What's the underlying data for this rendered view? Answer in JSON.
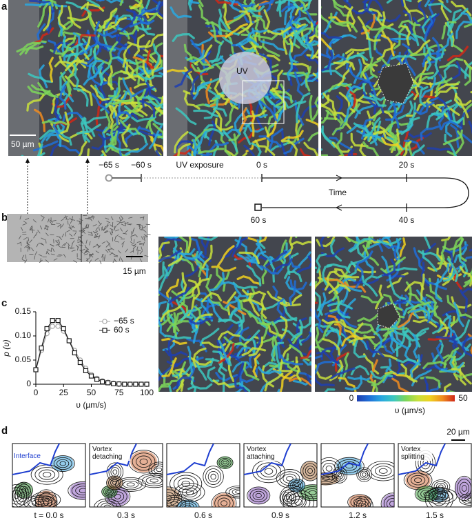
{
  "panel_a": {
    "label": "a",
    "scale_bar": "50 µm",
    "uv_label": "UV"
  },
  "timeline": {
    "labels": [
      "−65 s",
      "−60 s",
      "UV exposure",
      "0 s",
      "20 s",
      "40 s",
      "60 s"
    ],
    "axis_label": "Time"
  },
  "panel_b": {
    "label": "b",
    "scale_bar": "15 µm"
  },
  "chart_data": {
    "type": "line",
    "panel_label": "c",
    "xlabel": "υ (µm/s)",
    "ylabel": "p (υ)",
    "x": [
      0,
      5,
      10,
      15,
      20,
      25,
      30,
      35,
      40,
      45,
      50,
      55,
      60,
      65,
      70,
      75,
      80,
      85,
      90,
      95,
      100
    ],
    "series": [
      {
        "name": "−65 s",
        "color": "#a6a6a6",
        "marker": "circle",
        "values": [
          0.03,
          0.07,
          0.105,
          0.12,
          0.12,
          0.11,
          0.09,
          0.07,
          0.05,
          0.033,
          0.02,
          0.012,
          0.007,
          0.004,
          0.002,
          0.001,
          0,
          0,
          0,
          0,
          0
        ]
      },
      {
        "name": "60 s",
        "color": "#1a1a1a",
        "marker": "square",
        "values": [
          0.03,
          0.075,
          0.115,
          0.132,
          0.132,
          0.115,
          0.09,
          0.065,
          0.045,
          0.028,
          0.017,
          0.01,
          0.005,
          0.003,
          0.001,
          0.0005,
          0,
          0,
          0,
          0,
          0
        ]
      }
    ],
    "xlim": [
      0,
      100
    ],
    "ylim": [
      0,
      0.15
    ],
    "xticks": [
      0,
      25,
      50,
      75,
      100
    ],
    "yticks": [
      0,
      0.05,
      {
        "value": 0.1,
        "label": "0.10"
      },
      0.15
    ]
  },
  "colorbar": {
    "label": "υ (µm/s)",
    "ticks": [
      0,
      50
    ]
  },
  "panel_d": {
    "label": "d",
    "scale_bar": "20 µm",
    "annotations": [
      "Interface",
      "Vortex detaching",
      "Vortex attaching",
      "Vortex splitting"
    ],
    "times": [
      "t = 0.0 s",
      "0.3 s",
      "0.6 s",
      "0.9 s",
      "1.2 s",
      "1.5 s"
    ]
  }
}
